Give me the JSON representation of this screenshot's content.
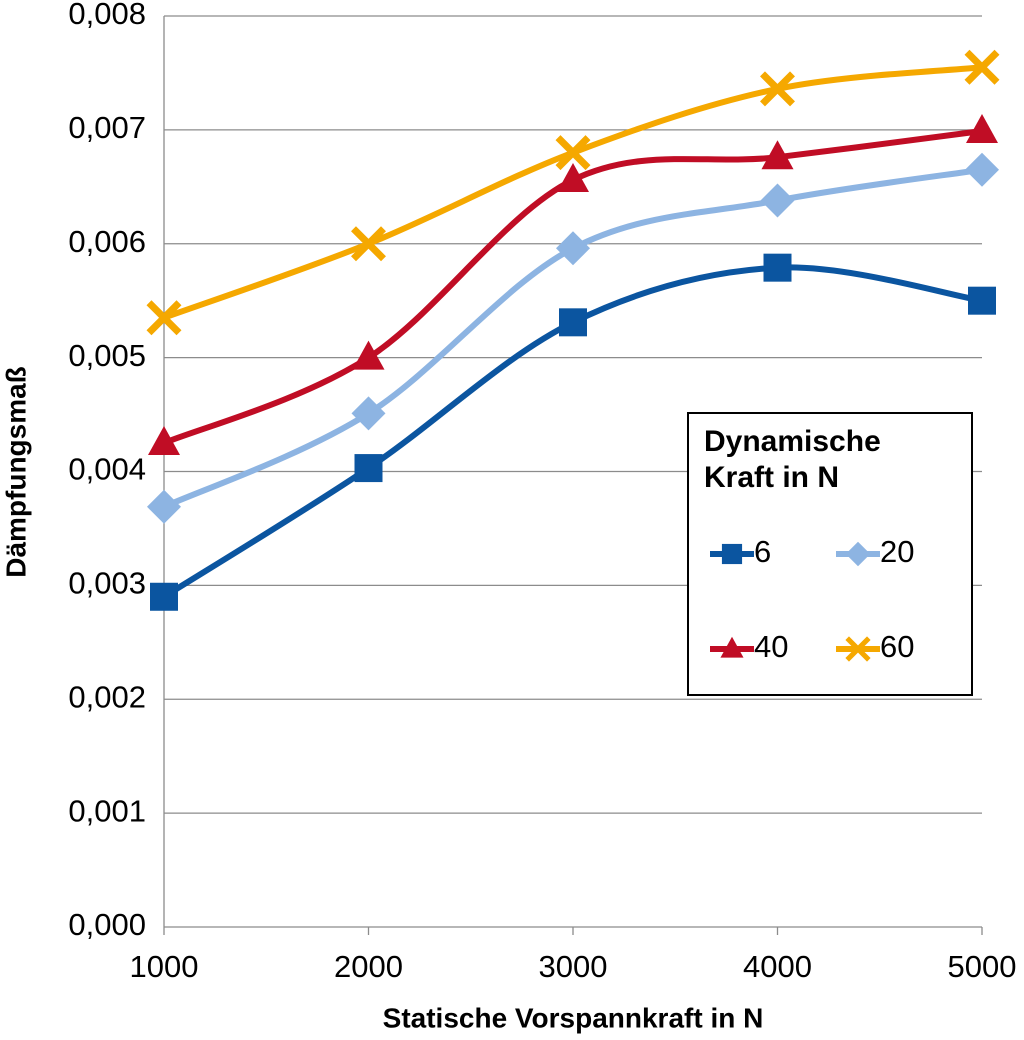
{
  "chart_data": {
    "type": "line",
    "x_label": "Statische Vorspannkraft in N",
    "y_label": "Dämpfungsmaß",
    "x": [
      1000,
      2000,
      3000,
      4000,
      5000
    ],
    "xlim": [
      1000,
      5000
    ],
    "xticks": [
      1000,
      2000,
      3000,
      4000,
      5000
    ],
    "ylim": [
      0,
      0.008
    ],
    "yticks": [
      {
        "value": 0,
        "label": "0,000"
      },
      {
        "value": 0.001,
        "label": "0,001"
      },
      {
        "value": 0.002,
        "label": "0,002"
      },
      {
        "value": 0.003,
        "label": "0,003"
      },
      {
        "value": 0.004,
        "label": "0,004"
      },
      {
        "value": 0.005,
        "label": "0,005"
      },
      {
        "value": 0.006,
        "label": "0,006"
      },
      {
        "value": 0.007,
        "label": "0,007"
      },
      {
        "value": 0.008,
        "label": "0,008"
      }
    ],
    "grid": true,
    "smooth": true,
    "legend_title": "Dynamische Kraft in N",
    "legend_position": "right",
    "series": [
      {
        "name": "6",
        "color": "#0b55a0",
        "marker": "square",
        "values": [
          0.0029,
          0.00403,
          0.00531,
          0.00579,
          0.0055
        ]
      },
      {
        "name": "20",
        "color": "#8db4e2",
        "marker": "diamond",
        "values": [
          0.00369,
          0.00451,
          0.00596,
          0.00638,
          0.00665
        ]
      },
      {
        "name": "40",
        "color": "#c00d25",
        "marker": "triangle",
        "values": [
          0.00425,
          0.005,
          0.00656,
          0.00676,
          0.00699
        ]
      },
      {
        "name": "60",
        "color": "#f5a800",
        "marker": "x",
        "values": [
          0.00535,
          0.006,
          0.0068,
          0.00736,
          0.00755
        ]
      }
    ]
  }
}
